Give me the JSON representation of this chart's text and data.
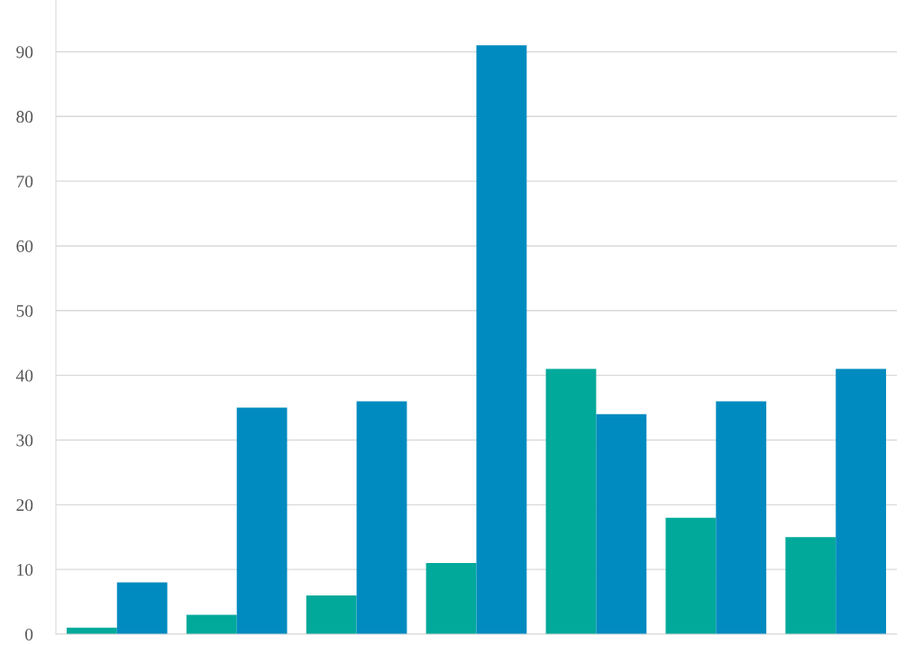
{
  "chart_data": {
    "type": "bar",
    "categories": [
      null,
      null,
      null,
      null,
      null,
      null,
      null
    ],
    "series": [
      {
        "color": "#00a99a",
        "values": [
          1,
          3,
          6,
          11,
          41,
          18,
          15
        ]
      },
      {
        "color": "#008bc0",
        "values": [
          8,
          35,
          36,
          91,
          34,
          36,
          41
        ]
      }
    ],
    "ylim": [
      0,
      98
    ],
    "yticks": [
      0,
      10,
      20,
      30,
      40,
      50,
      60,
      70,
      80,
      90
    ],
    "grid": "y",
    "legend": false
  }
}
